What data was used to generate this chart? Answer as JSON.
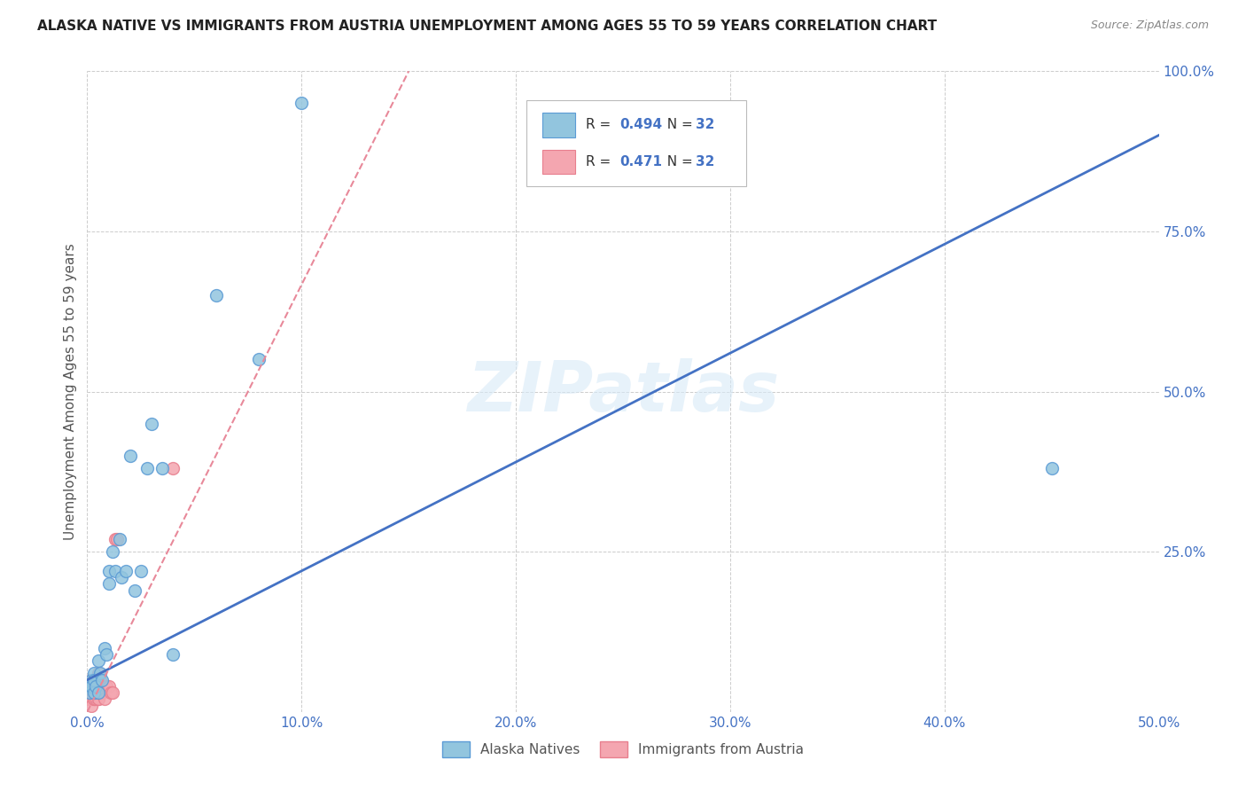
{
  "title": "ALASKA NATIVE VS IMMIGRANTS FROM AUSTRIA UNEMPLOYMENT AMONG AGES 55 TO 59 YEARS CORRELATION CHART",
  "source": "Source: ZipAtlas.com",
  "ylabel": "Unemployment Among Ages 55 to 59 years",
  "xlim": [
    0,
    0.5
  ],
  "ylim": [
    0,
    1.0
  ],
  "xticks": [
    0.0,
    0.1,
    0.2,
    0.3,
    0.4,
    0.5
  ],
  "yticks": [
    0.0,
    0.25,
    0.5,
    0.75,
    1.0
  ],
  "xticklabels": [
    "0.0%",
    "10.0%",
    "20.0%",
    "30.0%",
    "40.0%",
    "50.0%"
  ],
  "yticklabels": [
    "",
    "25.0%",
    "50.0%",
    "75.0%",
    "100.0%"
  ],
  "blue_color": "#92C5DE",
  "pink_color": "#F4A6B0",
  "blue_edge_color": "#5B9BD5",
  "pink_edge_color": "#E87F8E",
  "blue_line_color": "#4472C4",
  "pink_line_color": "#E8899A",
  "legend_r_blue": "0.494",
  "legend_n_blue": "32",
  "legend_r_pink": "0.471",
  "legend_n_pink": "32",
  "legend_label_blue": "Alaska Natives",
  "legend_label_pink": "Immigrants from Austria",
  "watermark": "ZIPatlas",
  "alaska_x": [
    0.001,
    0.001,
    0.002,
    0.002,
    0.003,
    0.003,
    0.003,
    0.004,
    0.005,
    0.005,
    0.006,
    0.007,
    0.008,
    0.009,
    0.01,
    0.01,
    0.012,
    0.013,
    0.015,
    0.016,
    0.018,
    0.02,
    0.022,
    0.025,
    0.028,
    0.03,
    0.035,
    0.04,
    0.06,
    0.08,
    0.1,
    0.45
  ],
  "alaska_y": [
    0.04,
    0.03,
    0.05,
    0.04,
    0.06,
    0.05,
    0.03,
    0.04,
    0.08,
    0.03,
    0.06,
    0.05,
    0.1,
    0.09,
    0.22,
    0.2,
    0.25,
    0.22,
    0.27,
    0.21,
    0.22,
    0.4,
    0.19,
    0.22,
    0.38,
    0.45,
    0.38,
    0.09,
    0.65,
    0.55,
    0.95,
    0.38
  ],
  "austria_x": [
    0.0,
    0.001,
    0.001,
    0.001,
    0.002,
    0.002,
    0.002,
    0.002,
    0.002,
    0.003,
    0.003,
    0.003,
    0.003,
    0.003,
    0.004,
    0.004,
    0.004,
    0.005,
    0.005,
    0.005,
    0.005,
    0.006,
    0.006,
    0.007,
    0.008,
    0.009,
    0.01,
    0.011,
    0.012,
    0.013,
    0.014,
    0.04
  ],
  "austria_y": [
    0.02,
    0.02,
    0.03,
    0.04,
    0.03,
    0.05,
    0.02,
    0.02,
    0.01,
    0.02,
    0.04,
    0.03,
    0.02,
    0.03,
    0.03,
    0.03,
    0.02,
    0.06,
    0.02,
    0.03,
    0.02,
    0.05,
    0.03,
    0.03,
    0.02,
    0.04,
    0.04,
    0.03,
    0.03,
    0.27,
    0.27,
    0.38
  ],
  "blue_line_x0": 0.0,
  "blue_line_y0": 0.05,
  "blue_line_x1": 0.5,
  "blue_line_y1": 0.9,
  "pink_line_x0": 0.0,
  "pink_line_y0": 0.0,
  "pink_line_x1": 0.15,
  "pink_line_y1": 1.0,
  "marker_size": 100,
  "background_color": "#FFFFFF",
  "grid_color": "#CCCCCC"
}
